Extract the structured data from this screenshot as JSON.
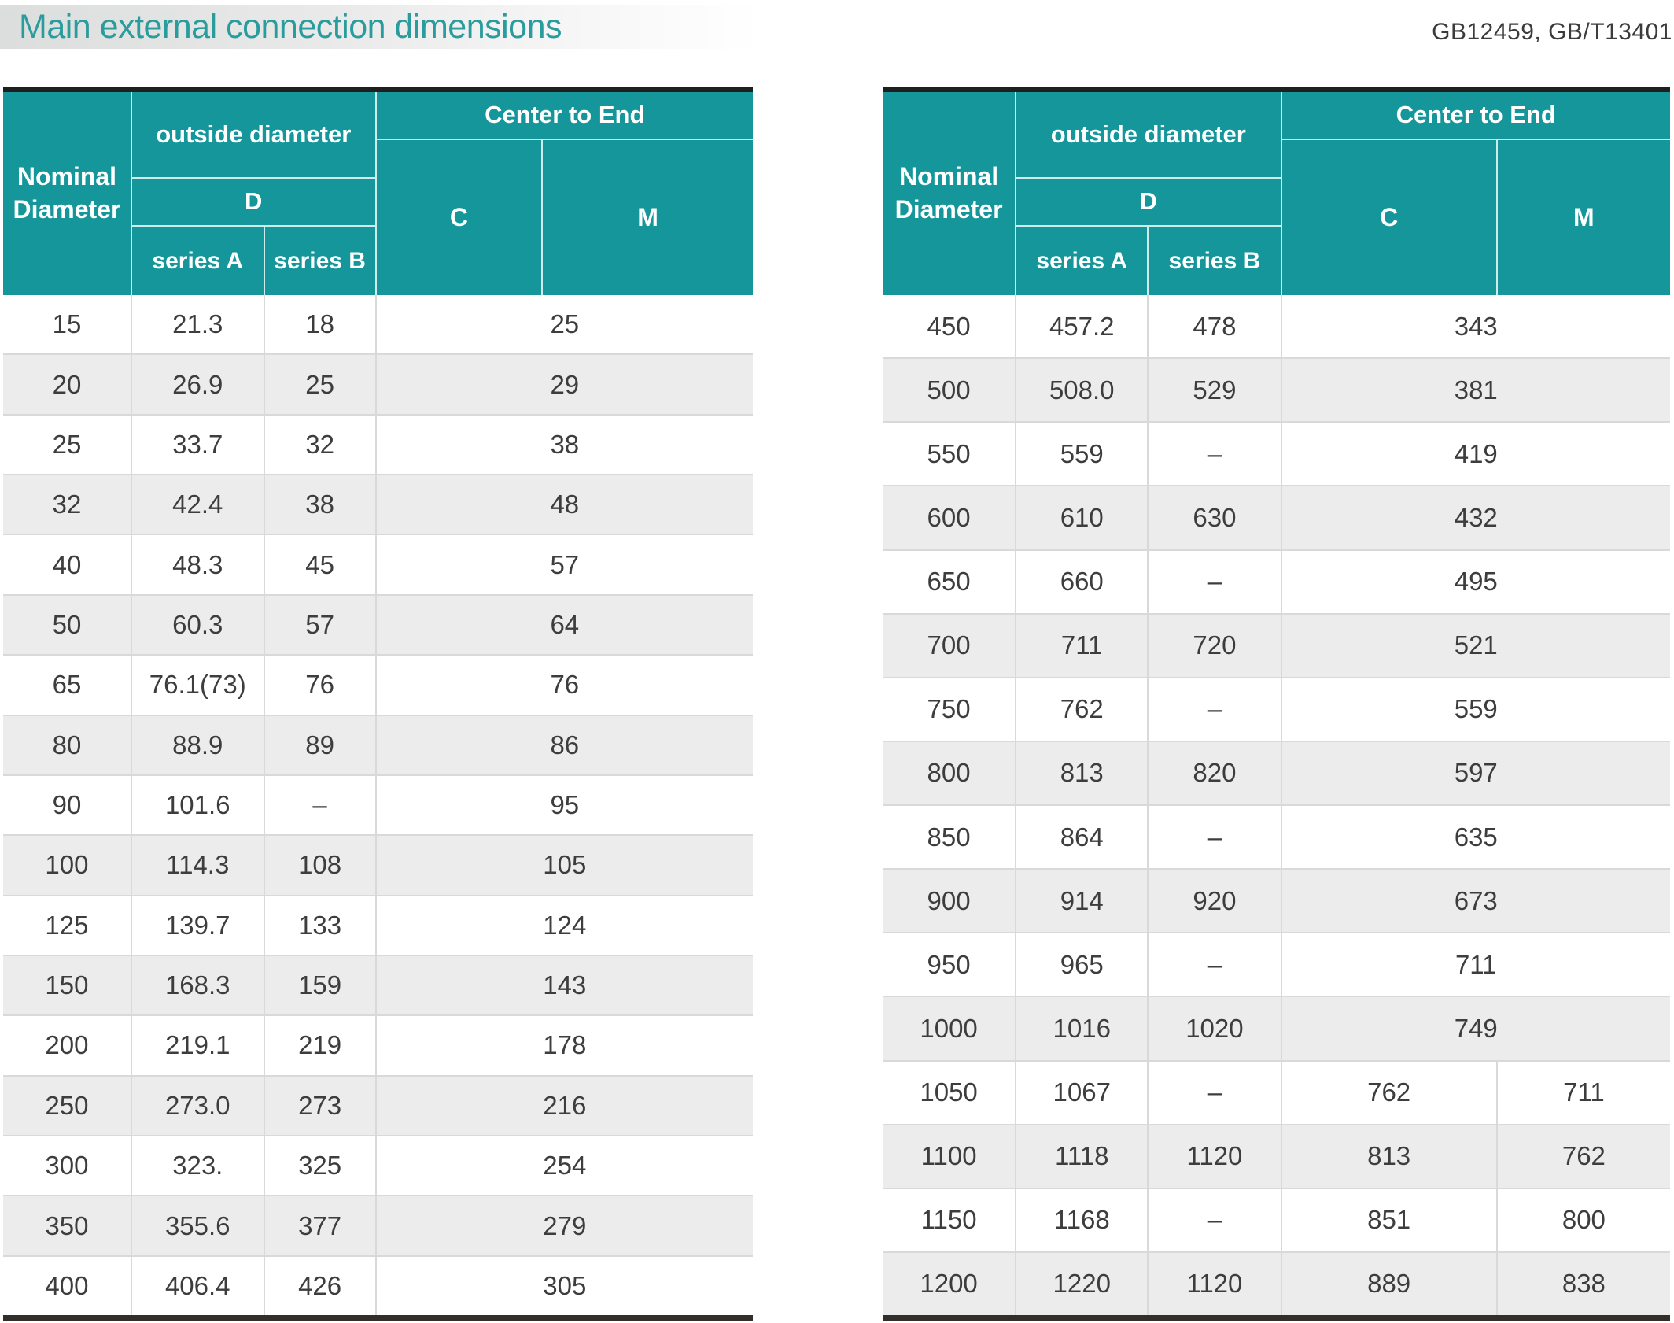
{
  "page": {
    "title": "Main external connection dimensions",
    "standards": "GB12459, GB/T13401"
  },
  "colors": {
    "header_teal": "#14969b",
    "title_teal": "#2b9c9d",
    "row_alt": "#ececec",
    "top_rule": "#1f1f1f",
    "bottom_rule": "#332e2a"
  },
  "header_labels": {
    "nominal_diameter": "Nominal Diameter",
    "outside_diameter": "outside diameter",
    "d": "D",
    "series_a": "series A",
    "series_b": "series B",
    "center_to_end": "Center to End",
    "c": "C",
    "m": "M"
  },
  "tables": [
    {
      "id": "left",
      "rows": [
        {
          "nominal": "15",
          "series_a": "21.3",
          "series_b": "18",
          "cm": "25"
        },
        {
          "nominal": "20",
          "series_a": "26.9",
          "series_b": "25",
          "cm": "29"
        },
        {
          "nominal": "25",
          "series_a": "33.7",
          "series_b": "32",
          "cm": "38"
        },
        {
          "nominal": "32",
          "series_a": "42.4",
          "series_b": "38",
          "cm": "48"
        },
        {
          "nominal": "40",
          "series_a": "48.3",
          "series_b": "45",
          "cm": "57"
        },
        {
          "nominal": "50",
          "series_a": "60.3",
          "series_b": "57",
          "cm": "64"
        },
        {
          "nominal": "65",
          "series_a": "76.1(73)",
          "series_b": "76",
          "cm": "76"
        },
        {
          "nominal": "80",
          "series_a": "88.9",
          "series_b": "89",
          "cm": "86"
        },
        {
          "nominal": "90",
          "series_a": "101.6",
          "series_b": "–",
          "cm": "95"
        },
        {
          "nominal": "100",
          "series_a": "114.3",
          "series_b": "108",
          "cm": "105"
        },
        {
          "nominal": "125",
          "series_a": "139.7",
          "series_b": "133",
          "cm": "124"
        },
        {
          "nominal": "150",
          "series_a": "168.3",
          "series_b": "159",
          "cm": "143"
        },
        {
          "nominal": "200",
          "series_a": "219.1",
          "series_b": "219",
          "cm": "178"
        },
        {
          "nominal": "250",
          "series_a": "273.0",
          "series_b": "273",
          "cm": "216"
        },
        {
          "nominal": "300",
          "series_a": "323.",
          "series_b": "325",
          "cm": "254"
        },
        {
          "nominal": "350",
          "series_a": "355.6",
          "series_b": "377",
          "cm": "279"
        },
        {
          "nominal": "400",
          "series_a": "406.4",
          "series_b": "426",
          "cm": "305"
        }
      ]
    },
    {
      "id": "right",
      "rows": [
        {
          "nominal": "450",
          "series_a": "457.2",
          "series_b": "478",
          "cm": "343"
        },
        {
          "nominal": "500",
          "series_a": "508.0",
          "series_b": "529",
          "cm": "381"
        },
        {
          "nominal": "550",
          "series_a": "559",
          "series_b": "–",
          "cm": "419"
        },
        {
          "nominal": "600",
          "series_a": "610",
          "series_b": "630",
          "cm": "432"
        },
        {
          "nominal": "650",
          "series_a": "660",
          "series_b": "–",
          "cm": "495"
        },
        {
          "nominal": "700",
          "series_a": "711",
          "series_b": "720",
          "cm": "521"
        },
        {
          "nominal": "750",
          "series_a": "762",
          "series_b": "–",
          "cm": "559"
        },
        {
          "nominal": "800",
          "series_a": "813",
          "series_b": "820",
          "cm": "597"
        },
        {
          "nominal": "850",
          "series_a": "864",
          "series_b": "–",
          "cm": "635"
        },
        {
          "nominal": "900",
          "series_a": "914",
          "series_b": "920",
          "cm": "673"
        },
        {
          "nominal": "950",
          "series_a": "965",
          "series_b": "–",
          "cm": "711"
        },
        {
          "nominal": "1000",
          "series_a": "1016",
          "series_b": "1020",
          "cm": "749"
        },
        {
          "nominal": "1050",
          "series_a": "1067",
          "series_b": "–",
          "c": "762",
          "m": "711"
        },
        {
          "nominal": "1100",
          "series_a": "1118",
          "series_b": "1120",
          "c": "813",
          "m": "762"
        },
        {
          "nominal": "1150",
          "series_a": "1168",
          "series_b": "–",
          "c": "851",
          "m": "800"
        },
        {
          "nominal": "1200",
          "series_a": "1220",
          "series_b": "1120",
          "c": "889",
          "m": "838"
        }
      ]
    }
  ]
}
